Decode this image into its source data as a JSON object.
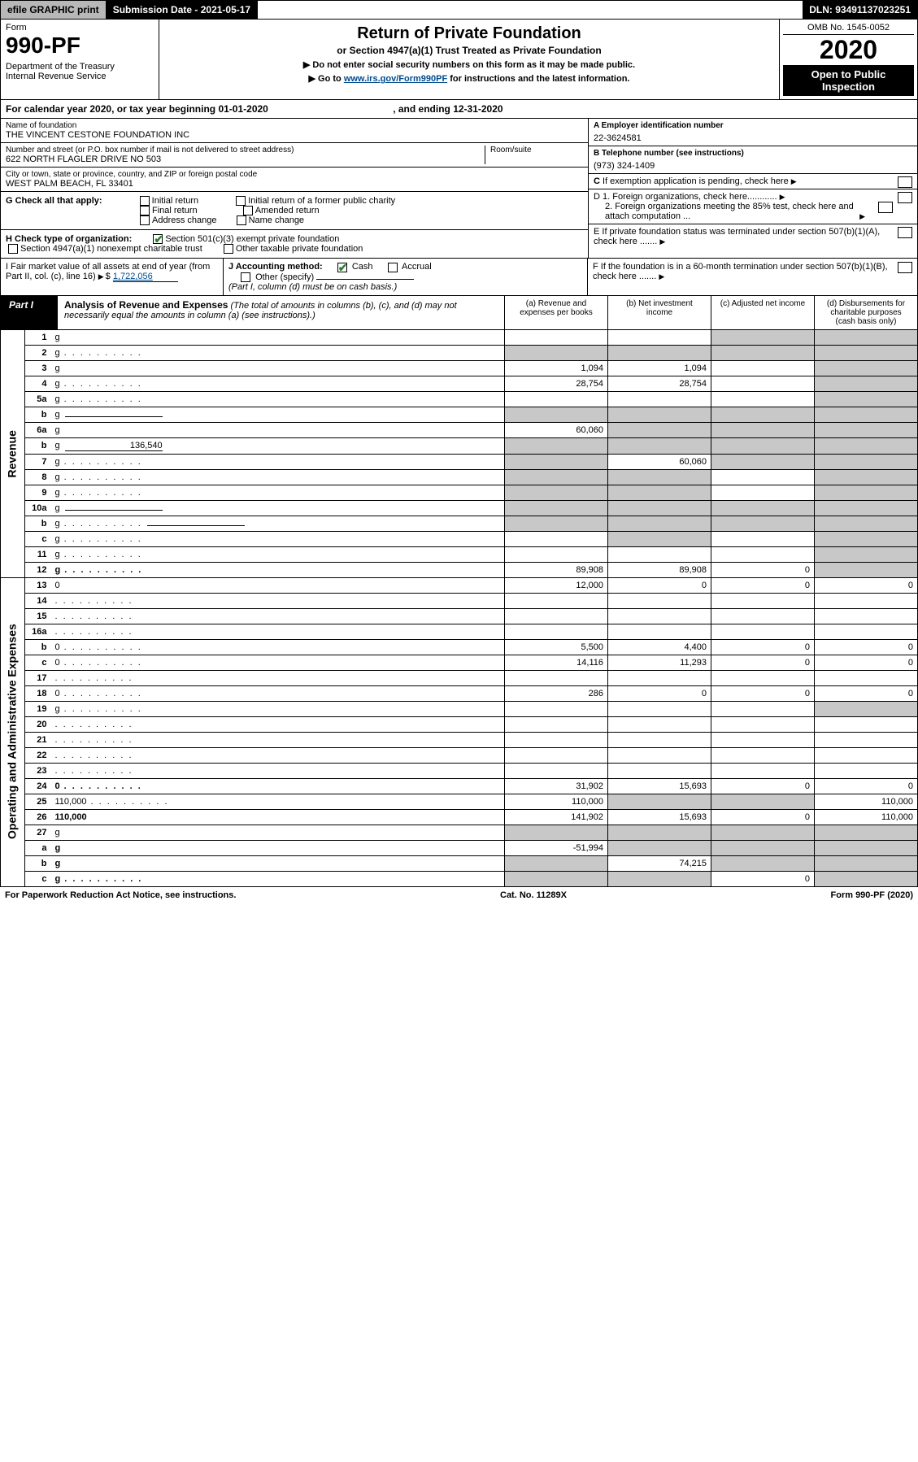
{
  "topbar": {
    "efile": "efile GRAPHIC print",
    "subdate_lbl": "Submission Date - ",
    "subdate": "2021-05-17",
    "dln_lbl": "DLN: ",
    "dln": "93491137023251"
  },
  "header": {
    "form_word": "Form",
    "form_num": "990-PF",
    "dept": "Department of the Treasury",
    "irs": "Internal Revenue Service",
    "title": "Return of Private Foundation",
    "subtitle": "or Section 4947(a)(1) Trust Treated as Private Foundation",
    "instr1": "▶ Do not enter social security numbers on this form as it may be made public.",
    "instr2_pre": "▶ Go to ",
    "instr2_link": "www.irs.gov/Form990PF",
    "instr2_post": " for instructions and the latest information.",
    "omb": "OMB No. 1545-0052",
    "year": "2020",
    "open": "Open to Public Inspection"
  },
  "calyear": {
    "pre": "For calendar year 2020, or tax year beginning ",
    "begin": "01-01-2020",
    "mid": " , and ending ",
    "end": "12-31-2020"
  },
  "name_block": {
    "lbl": "Name of foundation",
    "val": "THE VINCENT CESTONE FOUNDATION INC"
  },
  "addr_block": {
    "lbl": "Number and street (or P.O. box number if mail is not delivered to street address)",
    "val": "622 NORTH FLAGLER DRIVE NO 503",
    "room_lbl": "Room/suite",
    "room_val": ""
  },
  "city_block": {
    "lbl": "City or town, state or province, country, and ZIP or foreign postal code",
    "val": "WEST PALM BEACH, FL  33401"
  },
  "ein": {
    "lbl": "A Employer identification number",
    "val": "22-3624581"
  },
  "phone": {
    "lbl": "B Telephone number (see instructions)",
    "val": "(973) 324-1409"
  },
  "boxC": "C  If exemption application is pending, check here",
  "boxD1": "D 1. Foreign organizations, check here............",
  "boxD2": "2. Foreign organizations meeting the 85% test, check here and attach computation ...",
  "boxE": "E  If private foundation status was terminated under section 507(b)(1)(A), check here .......",
  "boxF": "F  If the foundation is in a 60-month termination under section 507(b)(1)(B), check here .......",
  "G": {
    "lbl": "G Check all that apply:",
    "opts": [
      "Initial return",
      "Final return",
      "Address change",
      "Initial return of a former public charity",
      "Amended return",
      "Name change"
    ]
  },
  "H": {
    "lbl": "H Check type of organization:",
    "opt1": "Section 501(c)(3) exempt private foundation",
    "opt2": "Section 4947(a)(1) nonexempt charitable trust",
    "opt3": "Other taxable private foundation"
  },
  "I": {
    "lbl": "I Fair market value of all assets at end of year (from Part II, col. (c), line 16)",
    "val": "1,722,056"
  },
  "J": {
    "lbl": "J Accounting method:",
    "cash": "Cash",
    "accrual": "Accrual",
    "other": "Other (specify)",
    "note": "(Part I, column (d) must be on cash basis.)"
  },
  "part1": {
    "lbl": "Part I",
    "title": "Analysis of Revenue and Expenses",
    "note": " (The total of amounts in columns (b), (c), and (d) may not necessarily equal the amounts in column (a) (see instructions).)",
    "col_a": "(a) Revenue and expenses per books",
    "col_b": "(b) Net investment income",
    "col_c": "(c) Adjusted net income",
    "col_d": "(d) Disbursements for charitable purposes (cash basis only)"
  },
  "sides": {
    "rev": "Revenue",
    "exp": "Operating and Administrative Expenses"
  },
  "rows": [
    {
      "n": "1",
      "d": "g",
      "a": "",
      "b": "",
      "c": "g"
    },
    {
      "n": "2",
      "d": "g",
      "dots": true,
      "a": "g",
      "b": "g",
      "c": "g",
      "bold_not": true
    },
    {
      "n": "3",
      "d": "g",
      "a": "1,094",
      "b": "1,094",
      "c": ""
    },
    {
      "n": "4",
      "d": "g",
      "dots": true,
      "a": "28,754",
      "b": "28,754",
      "c": ""
    },
    {
      "n": "5a",
      "d": "g",
      "dots": true,
      "a": "",
      "b": "",
      "c": ""
    },
    {
      "n": "b",
      "d": "g",
      "inline": true,
      "a": "g",
      "b": "g",
      "c": "g"
    },
    {
      "n": "6a",
      "d": "g",
      "a": "60,060",
      "b": "g",
      "c": "g"
    },
    {
      "n": "b",
      "d": "g",
      "inline_val": "136,540",
      "a": "g",
      "b": "g",
      "c": "g"
    },
    {
      "n": "7",
      "d": "g",
      "dots": true,
      "a": "g",
      "b": "60,060",
      "c": "g"
    },
    {
      "n": "8",
      "d": "g",
      "dots": true,
      "a": "g",
      "b": "g",
      "c": ""
    },
    {
      "n": "9",
      "d": "g",
      "dots": true,
      "a": "g",
      "b": "g",
      "c": ""
    },
    {
      "n": "10a",
      "d": "g",
      "inline": true,
      "a": "g",
      "b": "g",
      "c": "g"
    },
    {
      "n": "b",
      "d": "g",
      "dots": true,
      "inline": true,
      "a": "g",
      "b": "g",
      "c": "g"
    },
    {
      "n": "c",
      "d": "g",
      "dots": true,
      "a": "",
      "b": "g",
      "c": ""
    },
    {
      "n": "11",
      "d": "g",
      "dots": true,
      "a": "",
      "b": "",
      "c": ""
    },
    {
      "n": "12",
      "d": "g",
      "dots": true,
      "bold": true,
      "a": "89,908",
      "b": "89,908",
      "c": "0"
    },
    {
      "n": "13",
      "d": "0",
      "a": "12,000",
      "b": "0",
      "c": "0"
    },
    {
      "n": "14",
      "d": "",
      "dots": true,
      "a": "",
      "b": "",
      "c": ""
    },
    {
      "n": "15",
      "d": "",
      "dots": true,
      "a": "",
      "b": "",
      "c": ""
    },
    {
      "n": "16a",
      "d": "",
      "dots": true,
      "a": "",
      "b": "",
      "c": ""
    },
    {
      "n": "b",
      "d": "0",
      "dots": true,
      "a": "5,500",
      "b": "4,400",
      "c": "0"
    },
    {
      "n": "c",
      "d": "0",
      "dots": true,
      "a": "14,116",
      "b": "11,293",
      "c": "0"
    },
    {
      "n": "17",
      "d": "",
      "dots": true,
      "a": "",
      "b": "",
      "c": ""
    },
    {
      "n": "18",
      "d": "0",
      "dots": true,
      "a": "286",
      "b": "0",
      "c": "0"
    },
    {
      "n": "19",
      "d": "g",
      "dots": true,
      "a": "",
      "b": "",
      "c": ""
    },
    {
      "n": "20",
      "d": "",
      "dots": true,
      "a": "",
      "b": "",
      "c": ""
    },
    {
      "n": "21",
      "d": "",
      "dots": true,
      "a": "",
      "b": "",
      "c": ""
    },
    {
      "n": "22",
      "d": "",
      "dots": true,
      "a": "",
      "b": "",
      "c": ""
    },
    {
      "n": "23",
      "d": "",
      "dots": true,
      "a": "",
      "b": "",
      "c": ""
    },
    {
      "n": "24",
      "d": "0",
      "dots": true,
      "bold": true,
      "a": "31,902",
      "b": "15,693",
      "c": "0"
    },
    {
      "n": "25",
      "d": "110,000",
      "dots": true,
      "a": "110,000",
      "b": "g",
      "c": "g"
    },
    {
      "n": "26",
      "d": "110,000",
      "bold": true,
      "a": "141,902",
      "b": "15,693",
      "c": "0"
    },
    {
      "n": "27",
      "d": "g",
      "a": "g",
      "b": "g",
      "c": "g"
    },
    {
      "n": "a",
      "d": "g",
      "bold": true,
      "a": "-51,994",
      "b": "g",
      "c": "g"
    },
    {
      "n": "b",
      "d": "g",
      "bold": true,
      "a": "g",
      "b": "74,215",
      "c": "g"
    },
    {
      "n": "c",
      "d": "g",
      "dots": true,
      "bold": true,
      "a": "g",
      "b": "g",
      "c": "0"
    }
  ],
  "footer": {
    "left": "For Paperwork Reduction Act Notice, see instructions.",
    "mid": "Cat. No. 11289X",
    "right": "Form 990-PF (2020)"
  },
  "colors": {
    "grey": "#c8c8c8",
    "link": "#004b8d",
    "check": "#2e7d32"
  }
}
